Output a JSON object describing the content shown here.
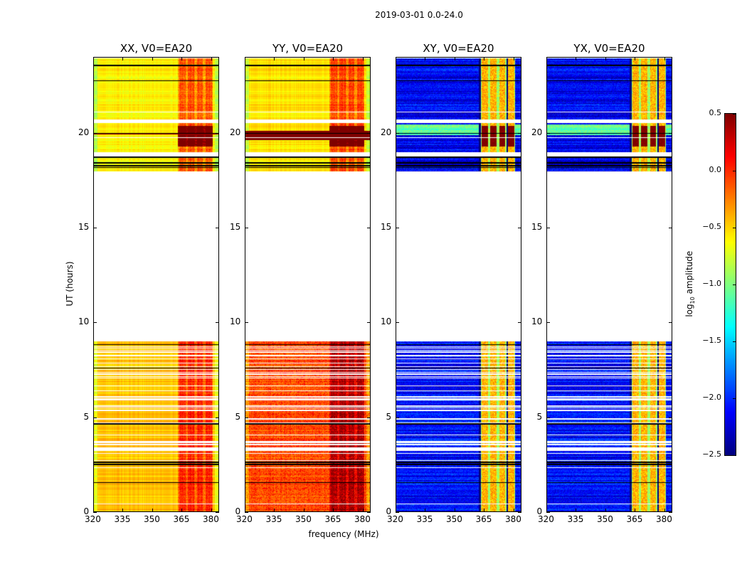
{
  "chart_data": {
    "type": "heatmap",
    "title": "2019-03-01 0.0-24.0",
    "xlabel": "frequency (MHz)",
    "ylabel": "UT (hours)",
    "xlim": [
      320,
      384
    ],
    "ylim": [
      0,
      24
    ],
    "xticks": [
      "320",
      "335",
      "350",
      "365",
      "380"
    ],
    "xtick_values": [
      320,
      335,
      350,
      365,
      380
    ],
    "yticks": [
      "0",
      "5",
      "10",
      "15",
      "20"
    ],
    "ytick_values": [
      0,
      5,
      10,
      15,
      20
    ],
    "panels": [
      {
        "title": "XX, V0=EA20",
        "kind": "auto",
        "base_upper": -0.6,
        "base_lower": -0.45
      },
      {
        "title": "YY, V0=EA20",
        "kind": "auto",
        "base_upper": -0.55,
        "base_lower": -0.15
      },
      {
        "title": "XY, V0=EA20",
        "kind": "cross",
        "base_upper": -2.3,
        "base_lower": -2.25
      },
      {
        "title": "YX, V0=EA20",
        "kind": "cross",
        "base_upper": -2.3,
        "base_lower": -2.25
      }
    ],
    "data_time_ranges_hours": [
      [
        0,
        2.6
      ],
      [
        2.6,
        9.0
      ],
      [
        18.0,
        18.8
      ],
      [
        19.0,
        20.55
      ],
      [
        20.75,
        24
      ]
    ],
    "rfi_band_mhz": [
      363,
      381
    ],
    "strong_rfi_hours": [
      19.3,
      20.4
    ],
    "colorbar": {
      "label": "log10 amplitude",
      "label_main": "log",
      "label_sub": "10",
      "label_rest": " amplitude",
      "colormap": "jet",
      "vmin": -2.5,
      "vmax": 0.5,
      "ticks": [
        "0.5",
        "0.0",
        "−0.5",
        "−1.0",
        "−1.5",
        "−2.0",
        "−2.5"
      ],
      "tick_values": [
        0.5,
        0.0,
        -0.5,
        -1.0,
        -1.5,
        -2.0,
        -2.5
      ]
    }
  }
}
